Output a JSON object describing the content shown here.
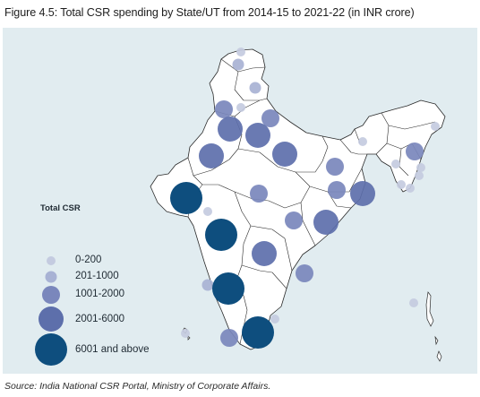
{
  "title": "Figure 4.5: Total CSR spending by State/UT from 2014-15 to 2021-22 (in INR crore)",
  "source": "Source: India National CSR Portal, Ministry of Corporate Affairs.",
  "colors": {
    "background": "#e1ecf0",
    "land": "#ffffff",
    "border": "#2a2a2a",
    "category_colors": [
      "#c4cbe0",
      "#a8b2d4",
      "#7a87bc",
      "#5d6fab",
      "#0e4e7e"
    ]
  },
  "legend": {
    "title": "Total CSR",
    "items": [
      {
        "label": "0-200",
        "category": 0
      },
      {
        "label": "201-1000",
        "category": 1
      },
      {
        "label": "1001-2000",
        "category": 2
      },
      {
        "label": "2001-6000",
        "category": 3
      },
      {
        "label": "6001 and above",
        "category": 4
      }
    ]
  },
  "markers": [
    {
      "region": "jammu-kashmir",
      "category": 1
    },
    {
      "region": "ladakh",
      "category": 0
    },
    {
      "region": "himachal-pradesh",
      "category": 1
    },
    {
      "region": "punjab",
      "category": 2
    },
    {
      "region": "chandigarh",
      "category": 0
    },
    {
      "region": "uttarakhand",
      "category": 2
    },
    {
      "region": "haryana",
      "category": 3
    },
    {
      "region": "delhi",
      "category": 3
    },
    {
      "region": "rajasthan",
      "category": 3
    },
    {
      "region": "uttar-pradesh",
      "category": 3
    },
    {
      "region": "bihar",
      "category": 2
    },
    {
      "region": "sikkim",
      "category": 0
    },
    {
      "region": "arunachal-pradesh",
      "category": 0
    },
    {
      "region": "assam",
      "category": 2
    },
    {
      "region": "meghalaya",
      "category": 0
    },
    {
      "region": "nagaland",
      "category": 0
    },
    {
      "region": "manipur",
      "category": 0
    },
    {
      "region": "tripura",
      "category": 0
    },
    {
      "region": "mizoram",
      "category": 0
    },
    {
      "region": "jharkhand",
      "category": 2
    },
    {
      "region": "west-bengal",
      "category": 3
    },
    {
      "region": "gujarat",
      "category": 4
    },
    {
      "region": "madhya-pradesh",
      "category": 2
    },
    {
      "region": "chhattisgarh",
      "category": 2
    },
    {
      "region": "odisha",
      "category": 3
    },
    {
      "region": "maharashtra",
      "category": 4
    },
    {
      "region": "dadra-daman",
      "category": 0
    },
    {
      "region": "telangana",
      "category": 3
    },
    {
      "region": "andhra-pradesh",
      "category": 2
    },
    {
      "region": "goa",
      "category": 1
    },
    {
      "region": "karnataka",
      "category": 4
    },
    {
      "region": "tamil-nadu",
      "category": 4
    },
    {
      "region": "puducherry",
      "category": 0
    },
    {
      "region": "kerala",
      "category": 2
    },
    {
      "region": "lakshadweep",
      "category": 0
    },
    {
      "region": "andaman-nicobar",
      "category": 0
    }
  ]
}
